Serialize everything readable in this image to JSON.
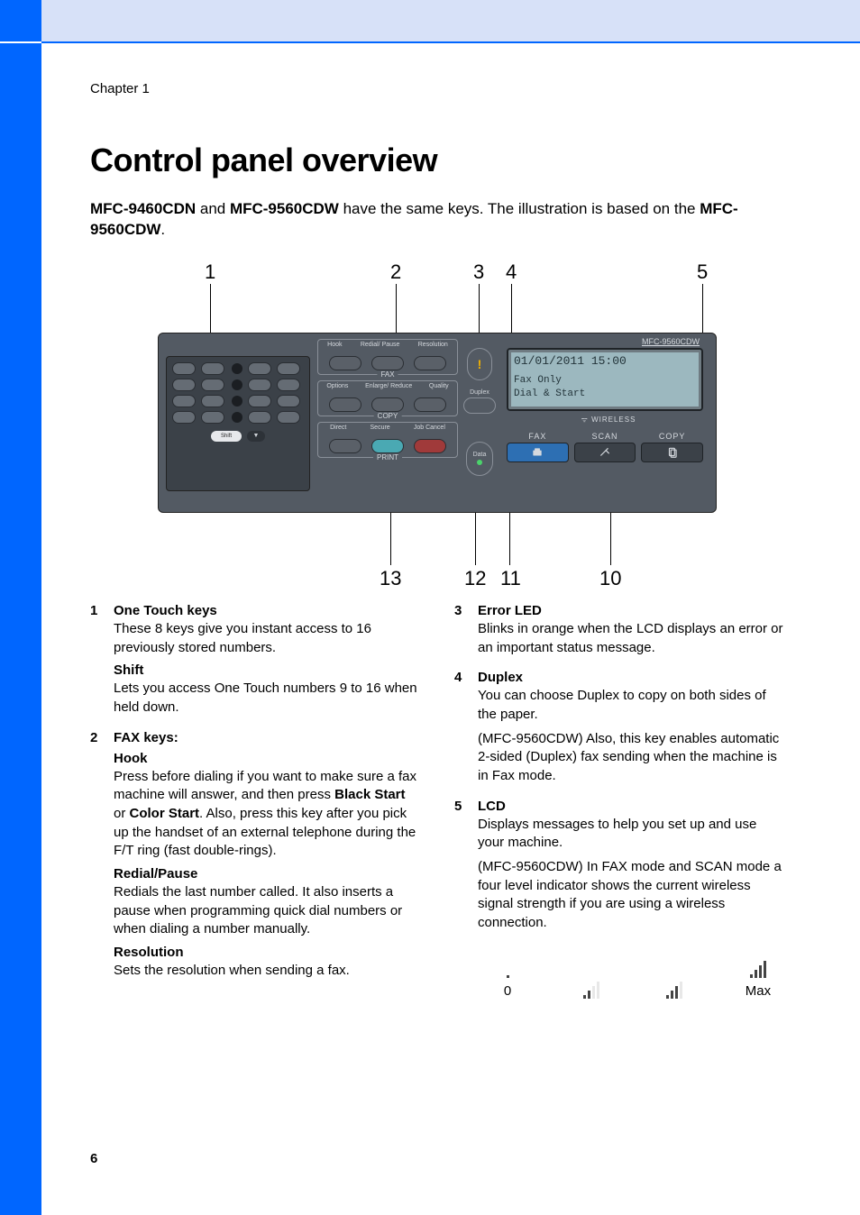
{
  "chapter": "Chapter 1",
  "page_number": "6",
  "heading": "Control panel overview",
  "intro": {
    "model_a": "MFC-9460CDN",
    "and": " and ",
    "model_b": "MFC-9560CDW",
    "text1": " have the same keys. The illustration is based on the ",
    "model_c": "MFC-9560CDW",
    "text2": "."
  },
  "diagram": {
    "callouts_top": [
      "1",
      "2",
      "3",
      "4",
      "5"
    ],
    "callouts_bottom": [
      "13",
      "12",
      "11",
      "10"
    ],
    "fax_group": {
      "legend": "FAX",
      "labels": [
        "Hook",
        "Redial/\nPause",
        "Resolution"
      ]
    },
    "copy_group": {
      "legend": "COPY",
      "labels": [
        "Options",
        "Enlarge/\nReduce",
        "Quality"
      ]
    },
    "print_group": {
      "legend": "PRINT",
      "labels": [
        "Direct",
        "Secure",
        "Job\nCancel"
      ]
    },
    "shift_label": "Shift",
    "duplex_label": "Duplex",
    "data_label": "Data",
    "wireless_label": "WIRELESS",
    "model_label": "MFC-9560CDW",
    "lcd_lines": [
      "01/01/2011 15:00",
      "Fax Only",
      "Dial & Start"
    ],
    "modes": [
      "FAX",
      "SCAN",
      "COPY"
    ]
  },
  "items_left": [
    {
      "n": "1",
      "title": "One Touch keys",
      "paras": [
        "These 8 keys give you instant access to 16 previously stored numbers."
      ],
      "subs": [
        {
          "t": "Shift",
          "p": "Lets you access One Touch numbers 9 to 16 when held down."
        }
      ]
    },
    {
      "n": "2",
      "title": "FAX keys:",
      "subs": [
        {
          "t": "Hook",
          "p": "Press before dialing if you want to make sure a fax machine will answer, and then press <b>Black Start</b> or <b>Color Start</b>. Also, press this key after you pick up the handset of an external telephone during the F/T ring (fast double-rings)."
        },
        {
          "t": "Redial/Pause",
          "p": "Redials the last number called. It also inserts a pause when programming quick dial numbers or when dialing a number manually."
        },
        {
          "t": "Resolution",
          "p": "Sets the resolution when sending a fax."
        }
      ]
    }
  ],
  "items_right": [
    {
      "n": "3",
      "title": "Error LED",
      "paras": [
        "Blinks in orange when the LCD displays an error or an important status message."
      ]
    },
    {
      "n": "4",
      "title": "Duplex",
      "paras": [
        "You can choose Duplex to copy on both sides of the paper.",
        "(MFC-9560CDW) Also, this key enables automatic 2-sided (Duplex) fax sending when the machine is in Fax mode."
      ]
    },
    {
      "n": "5",
      "title": "LCD",
      "paras": [
        "Displays messages to help you set up and use your machine.",
        "(MFC-9560CDW) In FAX mode and SCAN mode a four level indicator shows the current wireless signal strength if you are using a wireless connection."
      ]
    }
  ],
  "signal": {
    "min": "0",
    "max": "Max",
    "levels": [
      0,
      1,
      2,
      3
    ]
  }
}
